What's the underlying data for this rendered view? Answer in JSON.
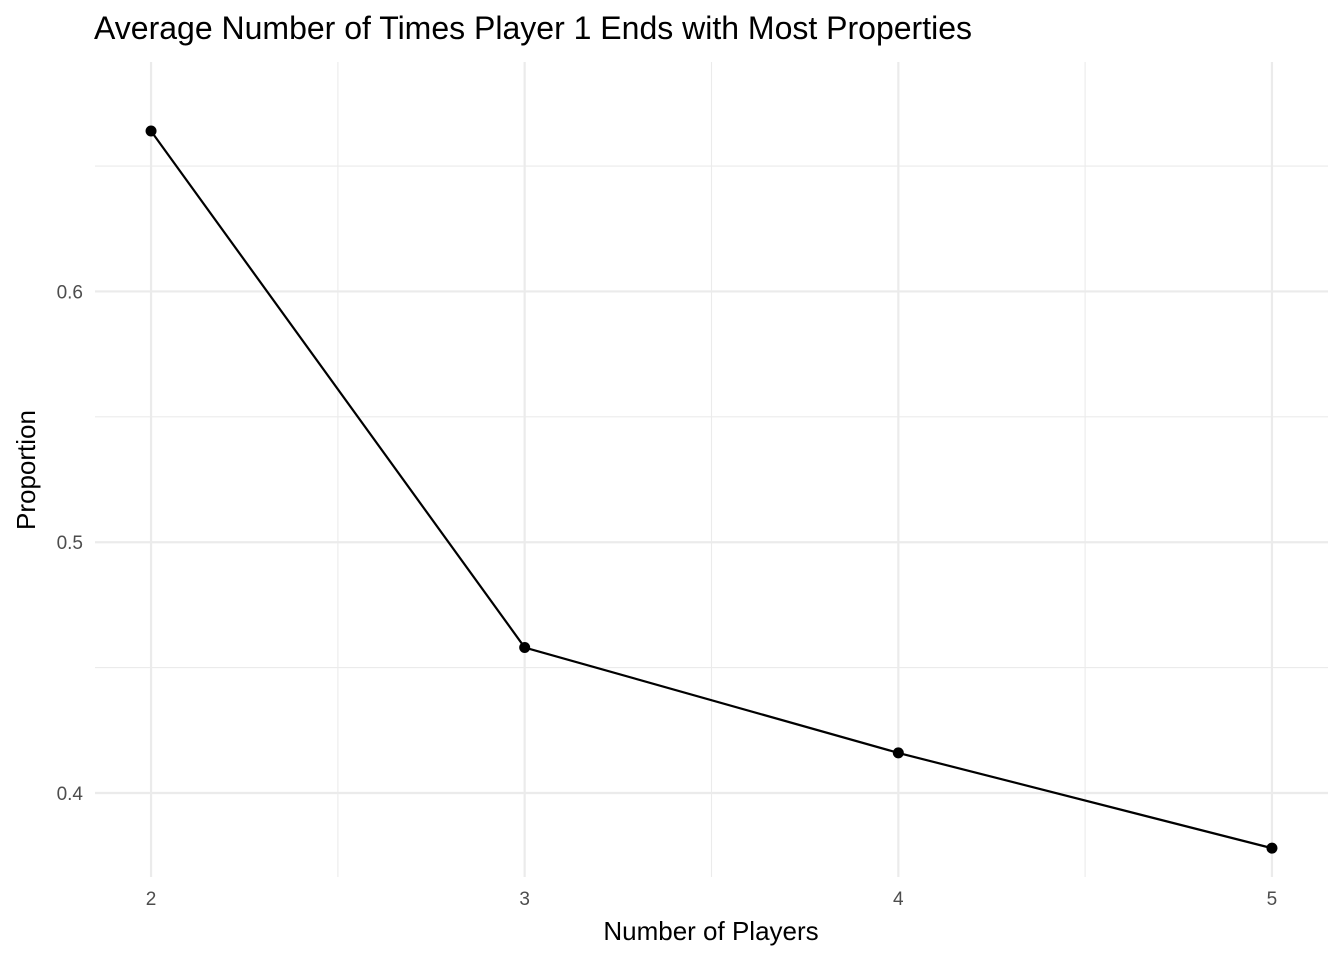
{
  "chart_data": {
    "type": "line",
    "title": "Average Number of Times Player 1 Ends with Most Properties",
    "xlabel": "Number of Players",
    "ylabel": "Proportion",
    "x": [
      2,
      3,
      4,
      5
    ],
    "series": [
      {
        "values": [
          0.664,
          0.458,
          0.416,
          0.378
        ]
      }
    ],
    "xlim": [
      1.85,
      5.15
    ],
    "ylim": [
      0.3665,
      0.6915
    ],
    "xticks": [
      2,
      3,
      4,
      5
    ],
    "xtick_labels": [
      "2",
      "3",
      "4",
      "5"
    ],
    "yticks": [
      0.4,
      0.5,
      0.6
    ],
    "ytick_labels": [
      "0.4",
      "0.5",
      "0.6"
    ],
    "y_minor_ticks": [
      0.45,
      0.55,
      0.65
    ],
    "x_minor_ticks": [
      2.5,
      3.5,
      4.5
    ],
    "grid": true,
    "legend": "none",
    "colors": {
      "series": "#000000",
      "grid": "#ebebeb",
      "tick_text": "#4d4d4d"
    }
  }
}
